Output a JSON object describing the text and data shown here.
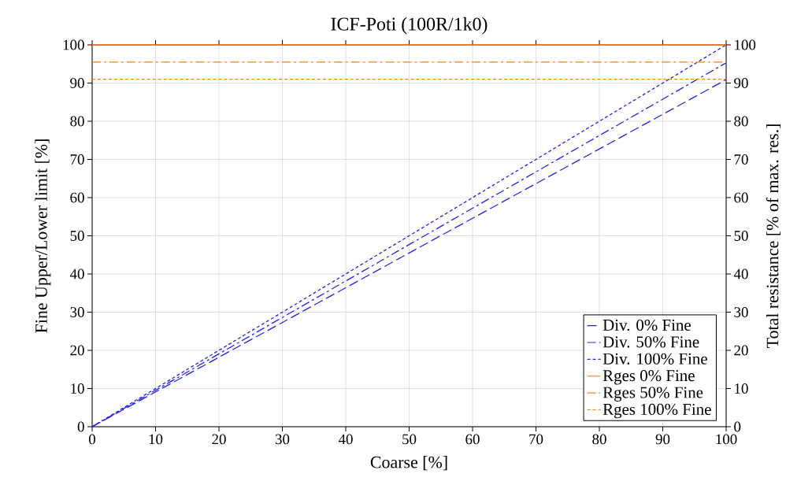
{
  "chart_data": {
    "type": "line",
    "title": "ICF-Poti (100R/1k0)",
    "xlabel": "Coarse [%]",
    "ylabel": "Fine Upper/Lower limit [%]",
    "y2label": "Total resistance [% of max. res.]",
    "x": [
      0,
      50,
      100
    ],
    "series": [
      {
        "name": "Div. 0% Fine",
        "color": "#2020ff",
        "values": [
          0,
          45.5,
          90.9
        ],
        "line_style": "dashed"
      },
      {
        "name": "Div. 50% Fine",
        "color": "#2020ff",
        "values": [
          0,
          47.7,
          95.3
        ],
        "line_style": "dashdot"
      },
      {
        "name": "Div. 100% Fine",
        "color": "#2020ff",
        "values": [
          0,
          50,
          100
        ],
        "line_style": "dotted"
      },
      {
        "name": "Rges 0% Fine",
        "color": "#ff7f27",
        "values": [
          100,
          100,
          100
        ],
        "line_style": "solid",
        "axis": "y2"
      },
      {
        "name": "Rges 50% Fine",
        "color": "#ff8000",
        "values": [
          95.5,
          95.5,
          95.5
        ],
        "line_style": "dashdot",
        "axis": "y2"
      },
      {
        "name": "Rges 100% Fine",
        "color": "#ff8000",
        "values": [
          91,
          91,
          91
        ],
        "line_style": "dotted",
        "axis": "y2"
      }
    ],
    "xlim": [
      0,
      100
    ],
    "ylim": [
      0,
      100
    ],
    "y2lim": [
      0,
      100
    ],
    "xticks": [
      0,
      10,
      20,
      30,
      40,
      50,
      60,
      70,
      80,
      90,
      100
    ],
    "yticks": [
      0,
      10,
      20,
      30,
      40,
      50,
      60,
      70,
      80,
      90,
      100
    ],
    "y2ticks": [
      0,
      10,
      20,
      30,
      40,
      50,
      60,
      70,
      80,
      90,
      100
    ],
    "grid": true,
    "legend": "bottom right",
    "marker": "none"
  }
}
